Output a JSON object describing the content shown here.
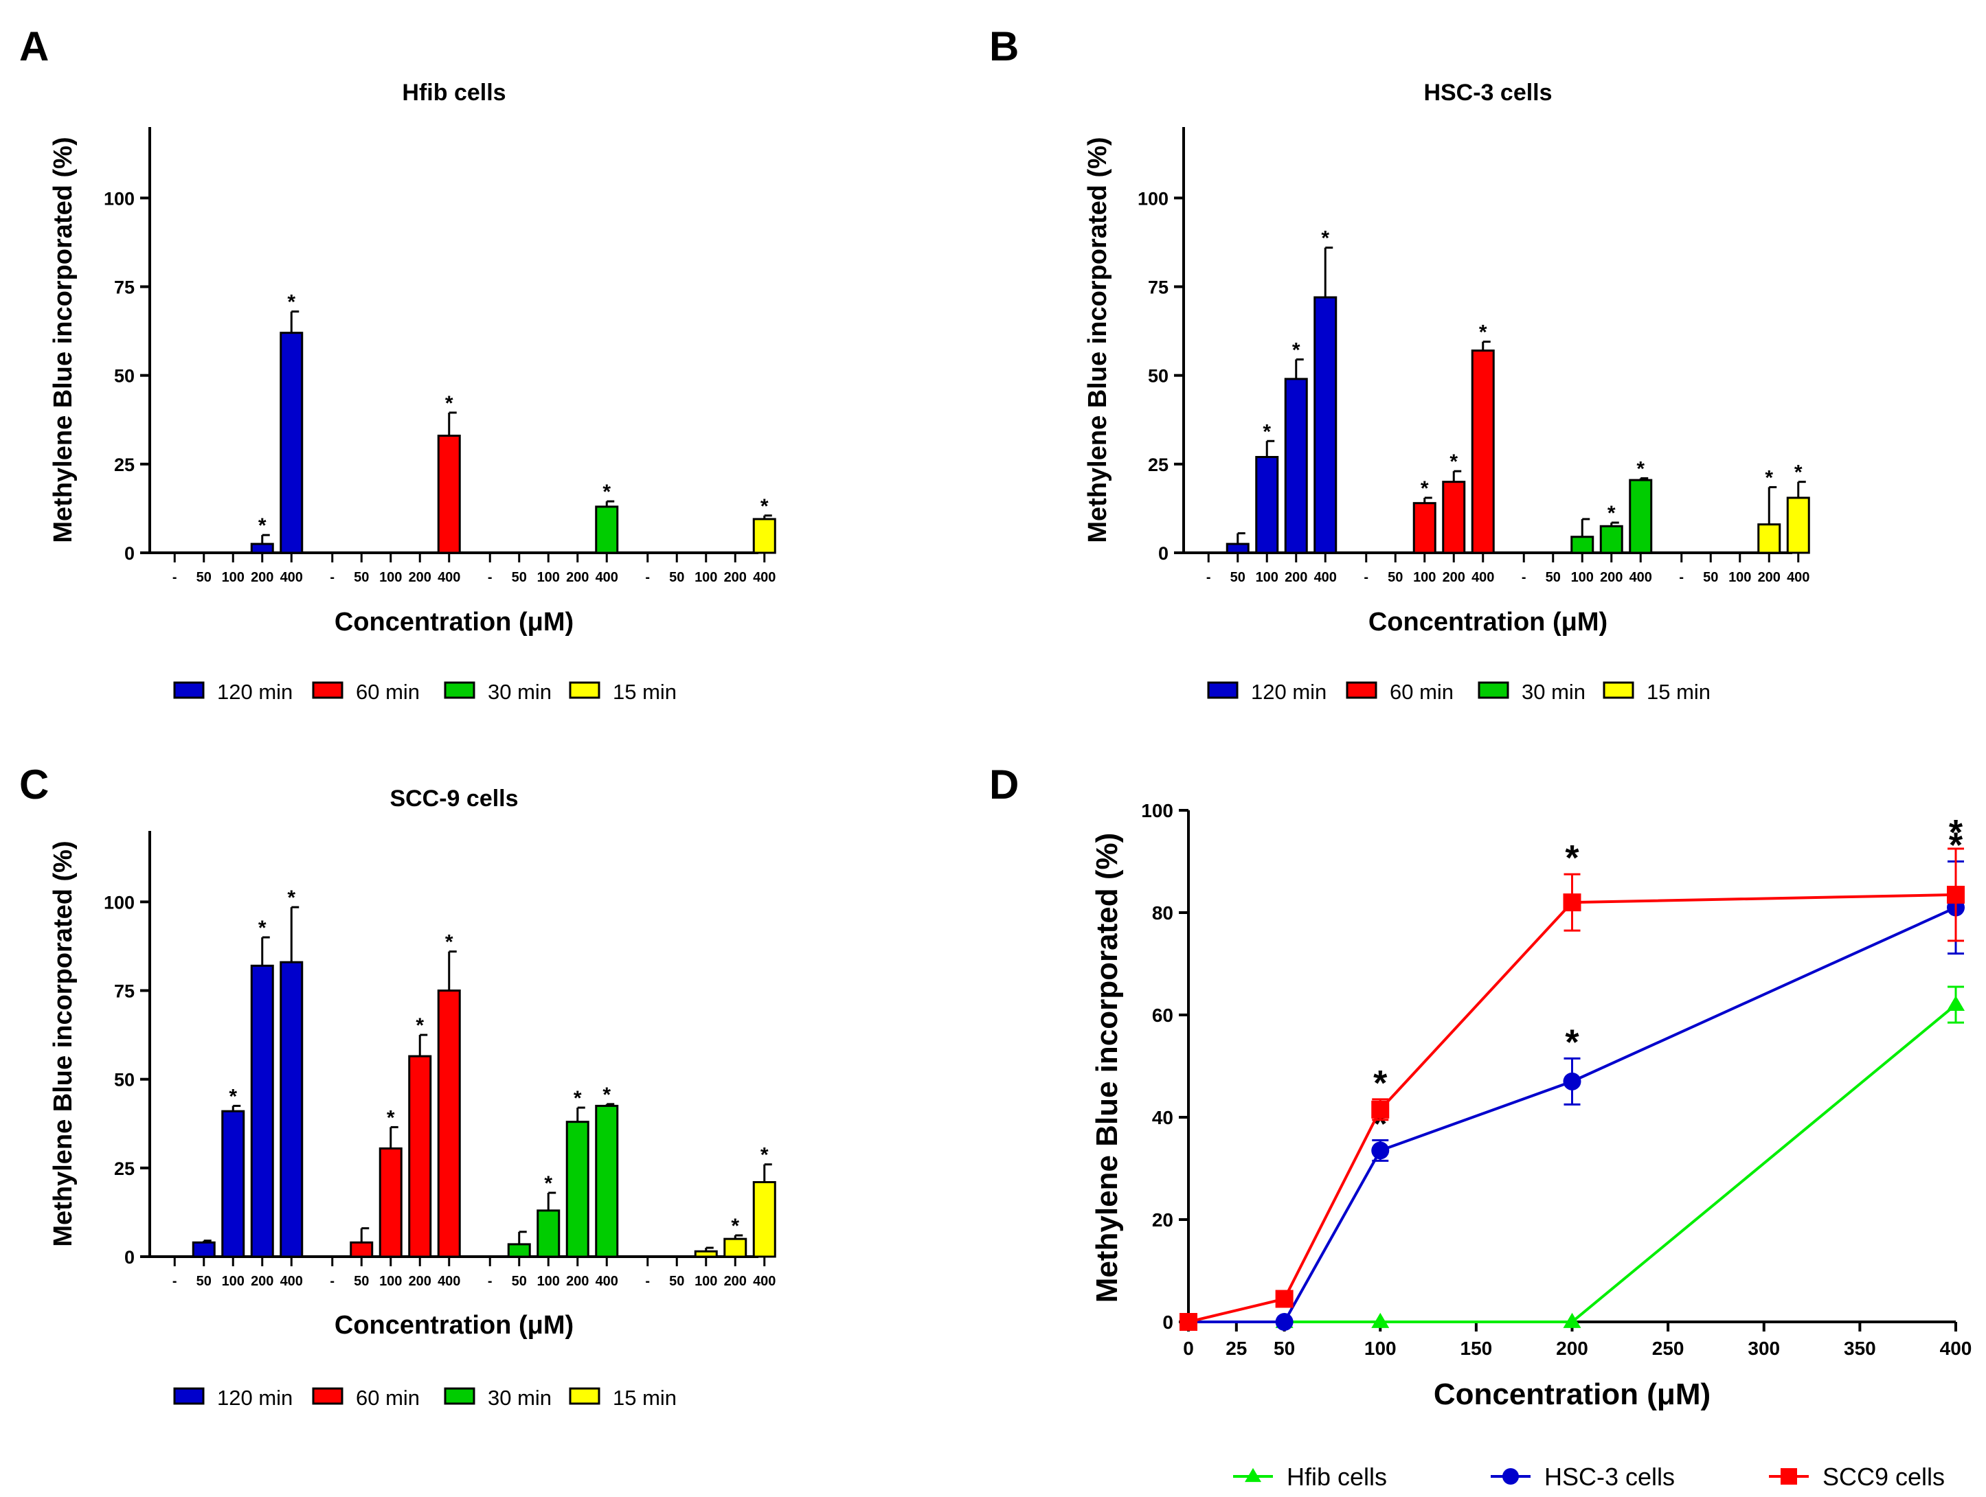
{
  "chart_data": [
    {
      "panel": "A",
      "type": "bar",
      "title": "Hfib cells",
      "ylabel": "Methylene Blue incorporated  (%)",
      "xlabel": "Concentration (μM)",
      "ylim": [
        0,
        120
      ],
      "yticks": [
        0,
        25,
        50,
        75,
        100
      ],
      "categories": [
        "-",
        "50",
        "100",
        "200",
        "400"
      ],
      "series": [
        {
          "name": "120 min",
          "color": "#0000cc",
          "values": [
            0,
            0,
            0,
            2.5,
            62
          ],
          "errors": [
            0,
            0,
            0,
            2.5,
            6
          ],
          "sig": [
            false,
            false,
            false,
            true,
            true
          ]
        },
        {
          "name": "60 min",
          "color": "#ff0000",
          "values": [
            0,
            0,
            0,
            0,
            33
          ],
          "errors": [
            0,
            0,
            0,
            0,
            6.5
          ],
          "sig": [
            false,
            false,
            false,
            false,
            true
          ]
        },
        {
          "name": "30 min",
          "color": "#00cc00",
          "values": [
            0,
            0,
            0,
            0,
            13
          ],
          "errors": [
            0,
            0,
            0,
            0,
            1.5
          ],
          "sig": [
            false,
            false,
            false,
            false,
            true
          ]
        },
        {
          "name": "15 min",
          "color": "#ffff00",
          "values": [
            0,
            0,
            0,
            0,
            9.5
          ],
          "errors": [
            0,
            0,
            0,
            0,
            1
          ],
          "sig": [
            false,
            false,
            false,
            false,
            true
          ]
        }
      ]
    },
    {
      "panel": "B",
      "type": "bar",
      "title": "HSC-3 cells",
      "ylabel": "Methylene Blue incorporated  (%)",
      "xlabel": "Concentration (μM)",
      "ylim": [
        0,
        120
      ],
      "yticks": [
        0,
        25,
        50,
        75,
        100
      ],
      "categories": [
        "-",
        "50",
        "100",
        "200",
        "400"
      ],
      "series": [
        {
          "name": "120 min",
          "color": "#0000cc",
          "values": [
            0,
            2.5,
            27,
            49,
            72
          ],
          "errors": [
            0,
            3,
            4.5,
            5.5,
            14
          ],
          "sig": [
            false,
            false,
            true,
            true,
            true
          ]
        },
        {
          "name": "60 min",
          "color": "#ff0000",
          "values": [
            0,
            0,
            14,
            20,
            57
          ],
          "errors": [
            0,
            0,
            1.5,
            3,
            2.5
          ],
          "sig": [
            false,
            false,
            true,
            true,
            true
          ]
        },
        {
          "name": "30 min",
          "color": "#00cc00",
          "values": [
            0,
            0,
            4.5,
            7.5,
            20.5
          ],
          "errors": [
            0,
            0,
            5,
            1,
            0.5
          ],
          "sig": [
            false,
            false,
            false,
            true,
            true
          ]
        },
        {
          "name": "15 min",
          "color": "#ffff00",
          "values": [
            0,
            0,
            0,
            8,
            15.5
          ],
          "errors": [
            0,
            0,
            0,
            10.5,
            4.5
          ],
          "sig": [
            false,
            false,
            false,
            true,
            true
          ]
        }
      ]
    },
    {
      "panel": "C",
      "type": "bar",
      "title": "SCC-9 cells",
      "ylabel": "Methylene Blue incorporated  (%)",
      "xlabel": "Concentration (μM)",
      "ylim": [
        0,
        120
      ],
      "yticks": [
        0,
        25,
        50,
        75,
        100
      ],
      "categories": [
        "-",
        "50",
        "100",
        "200",
        "400"
      ],
      "series": [
        {
          "name": "120 min",
          "color": "#0000cc",
          "values": [
            0,
            4,
            41,
            82,
            83
          ],
          "errors": [
            0,
            0.5,
            1.5,
            8,
            15.5
          ],
          "sig": [
            false,
            false,
            true,
            true,
            true
          ]
        },
        {
          "name": "60 min",
          "color": "#ff0000",
          "values": [
            0,
            4,
            30.5,
            56.5,
            75
          ],
          "errors": [
            0,
            4,
            6,
            6,
            11
          ],
          "sig": [
            false,
            false,
            true,
            true,
            true
          ]
        },
        {
          "name": "30 min",
          "color": "#00cc00",
          "values": [
            0,
            3.5,
            13,
            38,
            42.5
          ],
          "errors": [
            0,
            3.5,
            5,
            4,
            0.5
          ],
          "sig": [
            false,
            false,
            true,
            true,
            true
          ]
        },
        {
          "name": "15 min",
          "color": "#ffff00",
          "values": [
            0,
            0,
            1.5,
            5,
            21
          ],
          "errors": [
            0,
            0,
            1,
            1,
            5
          ],
          "sig": [
            false,
            false,
            false,
            true,
            true
          ]
        }
      ]
    },
    {
      "panel": "D",
      "type": "line",
      "title": "",
      "ylabel": "Methylene Blue incorporated  (%)",
      "xlabel": "Concentration (μM)",
      "xlim": [
        0,
        400
      ],
      "ylim": [
        0,
        100
      ],
      "xticks": [
        0,
        25,
        50,
        100,
        150,
        200,
        250,
        300,
        350,
        400
      ],
      "yticks": [
        0,
        20,
        40,
        60,
        80,
        100
      ],
      "series": [
        {
          "name": "Hfib cells",
          "color": "#00ee00",
          "marker": "triangle",
          "x": [
            0,
            50,
            100,
            200,
            400
          ],
          "y": [
            0,
            0,
            0,
            0,
            62
          ],
          "errors": [
            0,
            0,
            0,
            0,
            3.5
          ],
          "sig": [
            false,
            false,
            false,
            false,
            false
          ]
        },
        {
          "name": "HSC-3 cells",
          "color": "#0000cc",
          "marker": "circle",
          "x": [
            0,
            50,
            100,
            200,
            400
          ],
          "y": [
            0,
            0,
            33.5,
            47,
            81
          ],
          "errors": [
            0,
            0,
            2,
            4.5,
            9
          ],
          "sig": [
            false,
            false,
            true,
            true,
            true
          ]
        },
        {
          "name": "SCC9 cells",
          "color": "#ff0000",
          "marker": "square",
          "x": [
            0,
            50,
            100,
            200,
            400
          ],
          "y": [
            0,
            4.5,
            41.5,
            82,
            83.5
          ],
          "errors": [
            0,
            0,
            2,
            5.5,
            9
          ],
          "sig": [
            false,
            false,
            true,
            true,
            true
          ]
        }
      ]
    }
  ]
}
